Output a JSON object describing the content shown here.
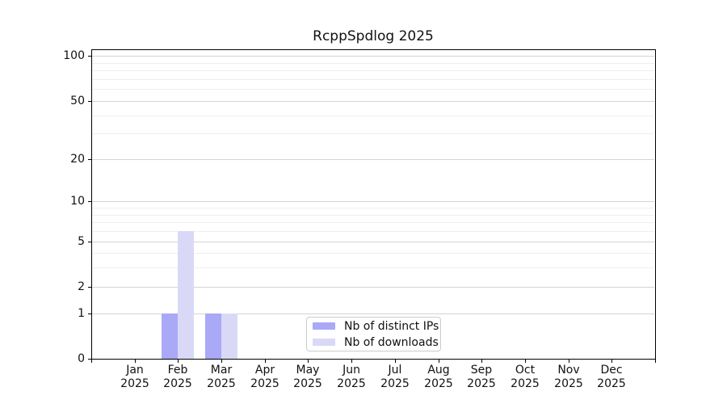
{
  "chart_data": {
    "type": "bar",
    "title": "RcppSpdlog 2025",
    "x": {
      "categories": [
        "Jan",
        "Feb",
        "Mar",
        "Apr",
        "May",
        "Jun",
        "Jul",
        "Aug",
        "Sep",
        "Oct",
        "Nov",
        "Dec"
      ],
      "year": "2025"
    },
    "series": [
      {
        "name": "Nb of distinct IPs",
        "color": "#a9a9f7",
        "values": [
          0,
          1,
          1,
          0,
          0,
          0,
          0,
          0,
          0,
          0,
          0,
          0
        ]
      },
      {
        "name": "Nb of downloads",
        "color": "#d9d9f7",
        "values": [
          0,
          6,
          1,
          0,
          0,
          0,
          0,
          0,
          0,
          0,
          0,
          0
        ]
      }
    ],
    "y_axis": {
      "scale": "log1p",
      "ticks": [
        0,
        1,
        2,
        5,
        10,
        20,
        50,
        100
      ],
      "minor_gridlines": [
        3,
        4,
        6,
        7,
        8,
        9,
        30,
        40,
        60,
        70,
        80,
        90
      ],
      "ylim": [
        0,
        111
      ]
    },
    "legend": {
      "position": "lower center"
    },
    "grid": "horizontal-only"
  }
}
